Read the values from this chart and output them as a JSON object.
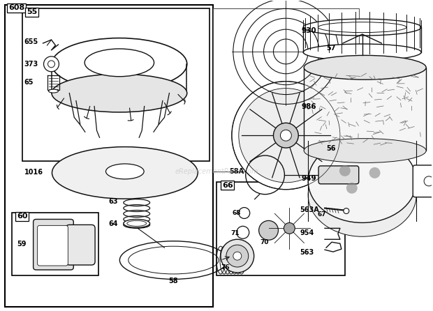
{
  "bg_color": "#ffffff",
  "lc": "#111111",
  "watermark": "eReplacementParts.com",
  "figsize": [
    6.2,
    4.46
  ],
  "dpi": 100
}
